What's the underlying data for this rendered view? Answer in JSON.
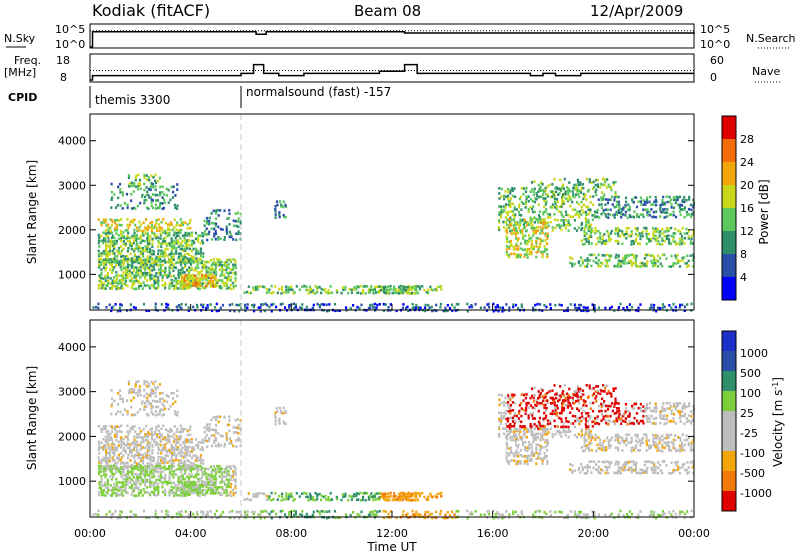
{
  "header": {
    "station": "Kodiak (fitACF)",
    "beam": "Beam 08",
    "date": "12/Apr/2009"
  },
  "left_labels": {
    "nsky": "N.Sky",
    "freq_line1": "Freq.",
    "freq_line2": "[MHz]",
    "cpid": "CPID"
  },
  "right_labels": {
    "nsearch": "N.Search",
    "nave": "Nave"
  },
  "small_axes": {
    "nsky_top": "10^5",
    "nsky_bottom": "10^0",
    "nsearch_top": "10^5",
    "nsearch_bottom": "10^0",
    "freq_top": "18",
    "freq_bottom": "8",
    "nave_top": "60",
    "nave_bottom": "0"
  },
  "cpid_segments": [
    {
      "label": "themis 3300",
      "start_hour": 0
    },
    {
      "label": "normalsound (fast) -157",
      "start_hour": 6
    }
  ],
  "colors": {
    "power_scale": [
      "#0000ff",
      "#2a4fa8",
      "#2f8f6a",
      "#5cc85c",
      "#c8d818",
      "#f2a60c",
      "#f26c0a",
      "#e00000"
    ],
    "velocity_scale": [
      "#e00000",
      "#f27a0a",
      "#f2a60c",
      "#bdbdbd",
      "#bdbdbd",
      "#7ccf3a",
      "#2f8f6a",
      "#2a4fa8",
      "#1c2fc8"
    ]
  },
  "chart_data": [
    {
      "type": "line",
      "title": "N.Sky / N.Search",
      "x_range": [
        0,
        24
      ],
      "series": [
        {
          "name": "N.Sky",
          "x": [
            0,
            0.1,
            6.5,
            6.6,
            7.0,
            7.5,
            12.0,
            12.5,
            24
          ],
          "y": [
            1,
            3000,
            3000,
            800,
            3000,
            3000,
            3000,
            1500,
            3000
          ]
        },
        {
          "name": "N.Search",
          "x": [
            0,
            24
          ],
          "y": [
            5000,
            5000
          ]
        }
      ]
    },
    {
      "type": "line",
      "title": "Freq. / Nave",
      "x_range": [
        0,
        24
      ],
      "series": [
        {
          "name": "Freq. [MHz]",
          "x": [
            0,
            0.1,
            6.0,
            6.5,
            6.9,
            7.5,
            8.5,
            11.5,
            12.5,
            13.0,
            17.5,
            18.0,
            18.5,
            19.5,
            24
          ],
          "y": [
            8,
            10,
            11,
            15,
            11,
            10,
            11,
            12,
            15,
            11,
            10,
            11,
            10,
            11,
            11
          ]
        },
        {
          "name": "Nave",
          "x": [
            0,
            24
          ],
          "y": [
            26,
            26
          ]
        }
      ]
    },
    {
      "type": "heatmap",
      "title": "Power [dB]",
      "xlabel": "",
      "ylabel": "Slant Range [km]",
      "x_range": [
        0,
        24
      ],
      "y_range": [
        200,
        4600
      ],
      "y_ticks": [
        1000,
        2000,
        3000,
        4000
      ],
      "colorbar_label": "Power [dB]",
      "colorbar_ticks": [
        4,
        8,
        12,
        16,
        20,
        24,
        28
      ],
      "colorbar_range": [
        0,
        32
      ]
    },
    {
      "type": "heatmap",
      "title": "Velocity [m s^-1]",
      "xlabel": "Time UT",
      "ylabel": "Slant Range [km]",
      "x_range": [
        0,
        24
      ],
      "y_range": [
        200,
        4600
      ],
      "x_ticks": [
        "00:00",
        "04:00",
        "08:00",
        "12:00",
        "16:00",
        "20:00",
        "00:00"
      ],
      "y_ticks": [
        1000,
        2000,
        3000,
        4000
      ],
      "colorbar_label": "Velocity [m s^-1]",
      "colorbar_ticks": [
        "1000",
        "500",
        "100",
        "25",
        "-25",
        "-100",
        "-500",
        "-1000"
      ]
    }
  ]
}
